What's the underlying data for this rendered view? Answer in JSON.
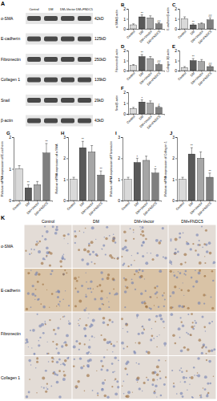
{
  "blot": {
    "panel": "A",
    "lanes": [
      "Control",
      "DM",
      "DM+Vector",
      "DM+FNDC5"
    ],
    "proteins": [
      "α-SMA",
      "E-cadherin",
      "Fibronectin",
      "Collagen 1",
      "Snail",
      "β-actin"
    ],
    "sizes": [
      "42kD",
      "125kD",
      "250kD",
      "139kD",
      "29kD",
      "43kD"
    ]
  },
  "chart_data": [
    {
      "type": "bar",
      "panel": "B",
      "y_label": "α-SMA/β-actin",
      "categories": [
        "Control",
        "DM",
        "DM+Vector",
        "DM+FNDC5"
      ],
      "values": [
        0.4,
        1.2,
        1.1,
        0.5
      ],
      "errors": [
        0.1,
        0.2,
        0.2,
        0.1
      ],
      "significance": [
        null,
        "**",
        null,
        "##"
      ],
      "colors": [
        "#d9d9d9",
        "#595959",
        "#a6a6a6",
        "#7f7f7f"
      ],
      "ylim": [
        0,
        2
      ],
      "yticks": [
        0,
        1,
        2
      ]
    },
    {
      "type": "bar",
      "panel": "C",
      "y_label": "E-cadherin/β-actin",
      "categories": [
        "Control",
        "DM",
        "DM+Vector",
        "DM+FNDC5"
      ],
      "values": [
        1.0,
        0.4,
        0.5,
        0.9
      ],
      "errors": [
        0.2,
        0.1,
        0.1,
        0.2
      ],
      "significance": [
        null,
        "**",
        null,
        "##"
      ],
      "colors": [
        "#d9d9d9",
        "#595959",
        "#a6a6a6",
        "#7f7f7f"
      ],
      "ylim": [
        0,
        2
      ],
      "yticks": [
        0,
        1,
        2
      ]
    },
    {
      "type": "bar",
      "panel": "D",
      "y_label": "Fibronectin/β-actin",
      "categories": [
        "Control",
        "DM",
        "DM+Vector",
        "DM+FNDC5"
      ],
      "values": [
        0.5,
        1.4,
        1.2,
        0.6
      ],
      "errors": [
        0.1,
        0.2,
        0.2,
        0.1
      ],
      "significance": [
        null,
        "**",
        null,
        "##"
      ],
      "colors": [
        "#d9d9d9",
        "#595959",
        "#a6a6a6",
        "#7f7f7f"
      ],
      "ylim": [
        0,
        2
      ],
      "yticks": [
        0,
        1,
        2
      ]
    },
    {
      "type": "bar",
      "panel": "E",
      "y_label": "Collagen 1/β-actin",
      "categories": [
        "Control",
        "DM",
        "DM+Vector",
        "DM+FNDC5"
      ],
      "values": [
        0.3,
        1.0,
        0.9,
        0.4
      ],
      "errors": [
        0.1,
        0.2,
        0.2,
        0.1
      ],
      "significance": [
        null,
        "**",
        null,
        "##"
      ],
      "colors": [
        "#d9d9d9",
        "#595959",
        "#a6a6a6",
        "#7f7f7f"
      ],
      "ylim": [
        0,
        2
      ],
      "yticks": [
        0,
        1,
        2
      ]
    },
    {
      "type": "bar",
      "panel": "F",
      "y_label": "Snail/β-actin",
      "categories": [
        "Control",
        "DM",
        "DM+Vector",
        "DM+FNDC5"
      ],
      "values": [
        0.5,
        1.1,
        1.0,
        0.6
      ],
      "errors": [
        0.1,
        0.2,
        0.2,
        0.1
      ],
      "significance": [
        null,
        "*",
        null,
        "#"
      ],
      "colors": [
        "#d9d9d9",
        "#595959",
        "#a6a6a6",
        "#7f7f7f"
      ],
      "ylim": [
        0,
        2
      ],
      "yticks": [
        0,
        1,
        2
      ]
    },
    {
      "type": "bar",
      "panel": "G",
      "y_label": "Relative mRNA expression of E-cadherin",
      "categories": [
        "Control",
        "DM",
        "DM+Vector",
        "DM+FNDC5"
      ],
      "values": [
        1.0,
        0.4,
        0.5,
        1.5
      ],
      "errors": [
        0.1,
        0.1,
        0.1,
        0.3
      ],
      "significance": [
        null,
        "**",
        null,
        "**"
      ],
      "colors": [
        "#d9d9d9",
        "#595959",
        "#a6a6a6",
        "#7f7f7f"
      ],
      "ylim": [
        0,
        2
      ],
      "yticks": [
        0,
        1,
        2
      ]
    },
    {
      "type": "bar",
      "panel": "H",
      "y_label": "Relative mRNA expression of α-SMA",
      "categories": [
        "Control",
        "DM",
        "DM+Vector",
        "DM+FNDC5"
      ],
      "values": [
        1.0,
        2.5,
        2.3,
        1.2
      ],
      "errors": [
        0.1,
        0.3,
        0.3,
        0.2
      ],
      "significance": [
        null,
        "**",
        null,
        "**"
      ],
      "colors": [
        "#d9d9d9",
        "#595959",
        "#a6a6a6",
        "#7f7f7f"
      ],
      "ylim": [
        0,
        3
      ],
      "yticks": [
        0,
        1,
        2,
        3
      ]
    },
    {
      "type": "bar",
      "panel": "I",
      "y_label": "Relative mRNA expression of Fibronectin",
      "categories": [
        "Control",
        "DM",
        "DM+Vector",
        "DM+FNDC5"
      ],
      "values": [
        1.0,
        1.8,
        1.9,
        1.3
      ],
      "errors": [
        0.1,
        0.2,
        0.2,
        0.2
      ],
      "significance": [
        null,
        "*",
        null,
        "*"
      ],
      "colors": [
        "#d9d9d9",
        "#595959",
        "#a6a6a6",
        "#7f7f7f"
      ],
      "ylim": [
        0,
        3
      ],
      "yticks": [
        0,
        1,
        2,
        3
      ]
    },
    {
      "type": "bar",
      "panel": "J",
      "y_label": "Relative mRNA expression of Collagen 1",
      "categories": [
        "Control",
        "DM",
        "DM+Vector",
        "DM+FNDC5"
      ],
      "values": [
        1.0,
        2.2,
        2.0,
        1.1
      ],
      "errors": [
        0.1,
        0.3,
        0.3,
        0.2
      ],
      "significance": [
        null,
        "**",
        null,
        "**"
      ],
      "colors": [
        "#d9d9d9",
        "#595959",
        "#a6a6a6",
        "#7f7f7f"
      ],
      "ylim": [
        0,
        3
      ],
      "yticks": [
        0,
        1,
        2,
        3
      ]
    }
  ],
  "ihc": {
    "panel": "K",
    "columns": [
      "Control",
      "DM",
      "DM+Vector",
      "DM+FNDC5"
    ],
    "rows": [
      "α-SMA",
      "E-cadherin",
      "Fibronectin",
      "Collagen 1"
    ]
  }
}
